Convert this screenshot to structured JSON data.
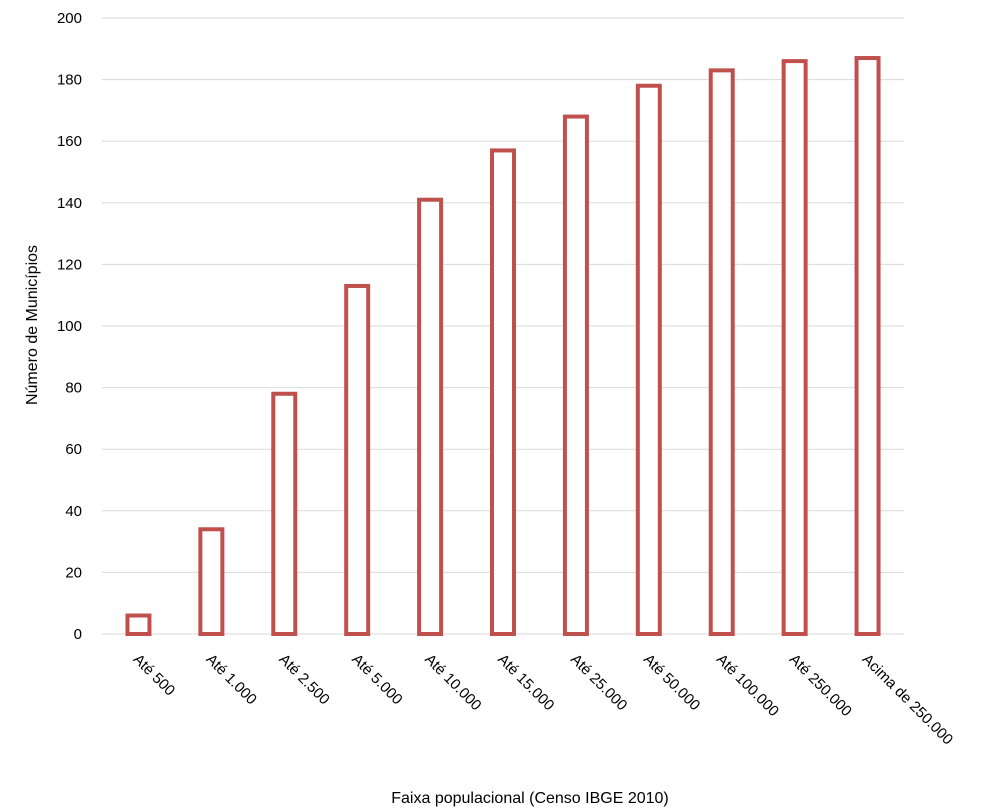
{
  "chart_data": {
    "type": "bar",
    "categories": [
      "Até 500",
      "Até 1.000",
      "Até 2.500",
      "Até 5.000",
      "Até 10.000",
      "Até 15.000",
      "Até 25.000",
      "Até 50.000",
      "Até 100.000",
      "Até 250.000",
      "Acima de 250.000"
    ],
    "values": [
      6,
      34,
      78,
      113,
      141,
      157,
      168,
      178,
      183,
      186,
      187
    ],
    "xlabel": "Faixa populacional (Censo IBGE 2010)",
    "ylabel": "Número de Municípios",
    "ylim": [
      0,
      200
    ],
    "yticks": [
      0,
      20,
      40,
      60,
      80,
      100,
      120,
      140,
      160,
      180,
      200
    ],
    "grid": true,
    "bar_style": "outline",
    "colors": {
      "bar_outline": "#c0504d",
      "gridline": "#d9d9d9"
    }
  }
}
